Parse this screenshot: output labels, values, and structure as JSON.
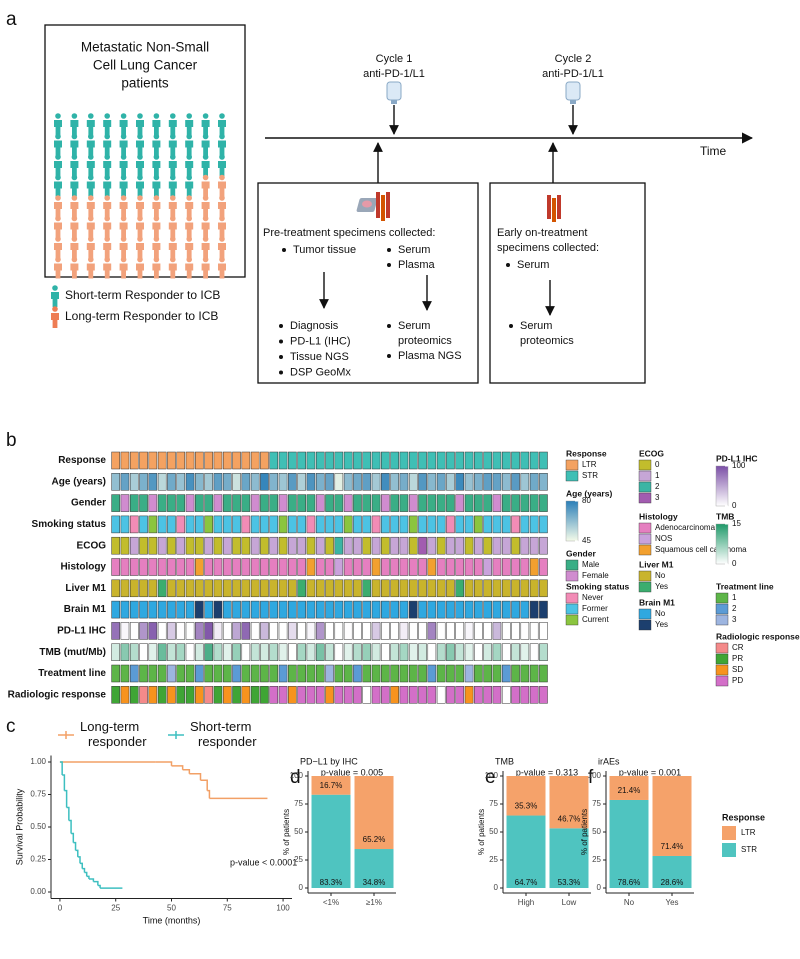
{
  "panel_a": {
    "label": "a",
    "cohort_title": [
      "Metastatic Non-Small",
      "Cell Lung Cancer",
      "patients"
    ],
    "legend": [
      "Short-term Responder to ICB",
      "Long-term Responder to ICB"
    ],
    "cycles": [
      {
        "name": "Cycle 1",
        "drug": "anti-PD-1/L1"
      },
      {
        "name": "Cycle 2",
        "drug": "anti-PD-1/L1"
      }
    ],
    "time_label": "Time",
    "pretreatment": {
      "title": "Pre-treatment specimens collected:",
      "tissue": "Tumor tissue",
      "blood": [
        "Serum",
        "Plasma"
      ],
      "tissue_assays": [
        "Diagnosis",
        "PD-L1 (IHC)",
        "Tissue NGS",
        "DSP GeoMx"
      ],
      "blood_assays": [
        [
          "Serum",
          "proteomics"
        ],
        [
          "Plasma NGS"
        ]
      ]
    },
    "on_treatment": {
      "title": [
        "Early on-treatment",
        "specimens collected:"
      ],
      "sample": "Serum",
      "assay": [
        "Serum",
        "proteomics"
      ]
    }
  },
  "panel_b": {
    "label": "b",
    "rows": [
      {
        "label": "Response",
        "items": [
          {
            "label": "LTR",
            "color": "#f4a261"
          },
          {
            "label": "STR",
            "color": "#3fbfb5"
          }
        ],
        "values": [
          0,
          0,
          0,
          0,
          0,
          0,
          0,
          0,
          0,
          0,
          0,
          0,
          0,
          0,
          0,
          0,
          0,
          1,
          1,
          1,
          1,
          1,
          1,
          1,
          1,
          1,
          1,
          1,
          1,
          1,
          1,
          1,
          1,
          1,
          1,
          1,
          1,
          1,
          1,
          1,
          1,
          1,
          1,
          1,
          1,
          1,
          1
        ]
      },
      {
        "label": "Age (years)",
        "scale": {
          "colors": [
            "#f4fbe9",
            "#2b7fb8"
          ],
          "min": 45,
          "max": 80,
          "ticks": [
            80,
            45
          ]
        },
        "values": [
          62,
          70,
          58,
          66,
          73,
          55,
          68,
          61,
          75,
          64,
          59,
          71,
          67,
          52,
          69,
          63,
          78,
          65,
          60,
          72,
          57,
          74,
          66,
          70,
          48,
          63,
          68,
          71,
          59,
          76,
          62,
          67,
          55,
          73,
          64,
          69,
          58,
          77,
          61,
          66,
          71,
          70,
          63,
          72,
          60,
          68,
          65
        ]
      },
      {
        "label": "Gender",
        "items": [
          {
            "label": "Male",
            "color": "#3aae86"
          },
          {
            "label": "Female",
            "color": "#d08ccf"
          }
        ],
        "values": [
          0,
          1,
          0,
          0,
          1,
          0,
          0,
          0,
          1,
          0,
          0,
          1,
          0,
          0,
          0,
          1,
          0,
          0,
          1,
          0,
          0,
          0,
          1,
          0,
          0,
          1,
          0,
          0,
          0,
          1,
          0,
          0,
          1,
          0,
          0,
          0,
          0,
          1,
          0,
          0,
          0,
          1,
          0,
          0,
          0,
          0,
          0
        ]
      },
      {
        "label": "Smoking status",
        "items": [
          {
            "label": "Never",
            "color": "#f28cb6"
          },
          {
            "label": "Former",
            "color": "#4cc3e4"
          },
          {
            "label": "Current",
            "color": "#8bc53f"
          }
        ],
        "values": [
          1,
          1,
          0,
          1,
          2,
          1,
          1,
          0,
          1,
          1,
          2,
          1,
          1,
          1,
          0,
          1,
          1,
          1,
          2,
          1,
          1,
          0,
          1,
          1,
          1,
          2,
          1,
          1,
          0,
          1,
          1,
          1,
          2,
          1,
          1,
          1,
          0,
          1,
          1,
          2,
          1,
          1,
          1,
          0,
          1,
          1,
          1
        ]
      },
      {
        "label": "ECOG",
        "items": [
          {
            "label": "0",
            "color": "#c2bd2c"
          },
          {
            "label": "1",
            "color": "#c6a6d6"
          },
          {
            "label": "2",
            "color": "#3bb5a4"
          },
          {
            "label": "3",
            "color": "#a25cb0"
          }
        ],
        "values": [
          0,
          0,
          1,
          0,
          0,
          1,
          0,
          1,
          0,
          0,
          1,
          0,
          1,
          0,
          0,
          1,
          0,
          1,
          0,
          1,
          1,
          0,
          1,
          0,
          2,
          1,
          1,
          0,
          1,
          0,
          1,
          1,
          0,
          3,
          1,
          0,
          1,
          1,
          0,
          1,
          0,
          1,
          1,
          0,
          1,
          1,
          1
        ]
      },
      {
        "label": "Histology",
        "items": [
          {
            "label": "Adenocarcinoma",
            "color": "#e57fc0"
          },
          {
            "label": "NOS",
            "color": "#c9a2dc"
          },
          {
            "label": "Squamous cell carcinoma",
            "color": "#f2a02f"
          }
        ],
        "values": [
          0,
          0,
          0,
          0,
          0,
          0,
          0,
          0,
          0,
          2,
          0,
          0,
          0,
          0,
          0,
          0,
          0,
          0,
          0,
          0,
          0,
          2,
          0,
          0,
          1,
          0,
          0,
          0,
          2,
          0,
          0,
          0,
          0,
          0,
          2,
          0,
          0,
          0,
          0,
          0,
          1,
          0,
          0,
          0,
          0,
          2,
          0
        ]
      },
      {
        "label": "Liver M1",
        "items": [
          {
            "label": "No",
            "color": "#c9b42c"
          },
          {
            "label": "Yes",
            "color": "#3bad6f"
          }
        ],
        "values": [
          0,
          0,
          0,
          0,
          0,
          1,
          0,
          0,
          0,
          0,
          0,
          0,
          0,
          0,
          0,
          0,
          0,
          0,
          0,
          0,
          1,
          0,
          0,
          0,
          0,
          0,
          0,
          1,
          0,
          0,
          0,
          0,
          0,
          0,
          0,
          0,
          0,
          1,
          0,
          0,
          0,
          0,
          0,
          0,
          0,
          0,
          0
        ]
      },
      {
        "label": "Brain M1",
        "items": [
          {
            "label": "No",
            "color": "#2fa8e0"
          },
          {
            "label": "Yes",
            "color": "#1c3f6e"
          }
        ],
        "values": [
          0,
          0,
          0,
          0,
          0,
          0,
          0,
          0,
          0,
          1,
          0,
          1,
          0,
          0,
          0,
          0,
          0,
          0,
          0,
          0,
          0,
          0,
          0,
          0,
          0,
          0,
          0,
          0,
          0,
          0,
          0,
          0,
          1,
          0,
          0,
          0,
          0,
          0,
          0,
          0,
          0,
          0,
          0,
          0,
          0,
          1,
          1
        ]
      },
      {
        "label": "PD-L1 IHC",
        "scale": {
          "colors": [
            "#ffffff",
            "#7b4fa6"
          ],
          "min": 0,
          "max": 100,
          "ticks": [
            100,
            0
          ]
        },
        "values": [
          80,
          5,
          0,
          60,
          90,
          0,
          30,
          1,
          0,
          70,
          95,
          10,
          0,
          50,
          85,
          0,
          40,
          0,
          0,
          20,
          null,
          5,
          60,
          0,
          0,
          1,
          0,
          null,
          30,
          0,
          0,
          10,
          0,
          0,
          70,
          0,
          0,
          null,
          5,
          0,
          0,
          40,
          0,
          0,
          1,
          null,
          0
        ]
      },
      {
        "label": "TMB (mut/Mb)",
        "legend_title": "TMB",
        "scale": {
          "colors": [
            "#ffffff",
            "#1f9a6a"
          ],
          "min": 0,
          "max": 15,
          "ticks": [
            15,
            0
          ]
        },
        "values": [
          3,
          8,
          5,
          null,
          2,
          10,
          4,
          6,
          null,
          3,
          12,
          5,
          2,
          7,
          null,
          4,
          3,
          5,
          2,
          null,
          6,
          3,
          9,
          4,
          null,
          2,
          5,
          7,
          3,
          null,
          4,
          6,
          2,
          3,
          null,
          5,
          8,
          4,
          2,
          null,
          3,
          6,
          null,
          4,
          2,
          null,
          5
        ]
      },
      {
        "label": "Treatment line",
        "items": [
          {
            "label": "1",
            "color": "#5db548"
          },
          {
            "label": "2",
            "color": "#5b9bd5"
          },
          {
            "label": "3",
            "color": "#9db5e0"
          }
        ],
        "values": [
          0,
          0,
          1,
          0,
          0,
          0,
          2,
          0,
          0,
          1,
          0,
          0,
          0,
          1,
          0,
          0,
          0,
          0,
          1,
          0,
          0,
          0,
          0,
          2,
          0,
          0,
          1,
          0,
          0,
          0,
          0,
          0,
          0,
          0,
          1,
          0,
          0,
          0,
          2,
          0,
          0,
          0,
          1,
          0,
          0,
          0,
          0
        ]
      },
      {
        "label": "Radiologic response",
        "items": [
          {
            "label": "CR",
            "color": "#f48a8a"
          },
          {
            "label": "PR",
            "color": "#3fa535"
          },
          {
            "label": "SD",
            "color": "#f7931e"
          },
          {
            "label": "PD",
            "color": "#d36fc8"
          }
        ],
        "values": [
          1,
          2,
          1,
          0,
          2,
          1,
          2,
          1,
          1,
          2,
          0,
          1,
          2,
          1,
          2,
          1,
          1,
          3,
          3,
          2,
          3,
          3,
          3,
          2,
          3,
          3,
          3,
          null,
          3,
          3,
          2,
          3,
          3,
          3,
          3,
          null,
          3,
          3,
          2,
          3,
          3,
          3,
          null,
          3,
          3,
          3,
          3
        ]
      }
    ]
  },
  "chart_data": [
    {
      "type": "line",
      "label": "c",
      "xlabel": "Time (months)",
      "ylabel": "Survival Probability",
      "annotation": "p-value < 0.0001",
      "xlim": [
        -4,
        104
      ],
      "xticks": [
        0,
        25,
        50,
        75,
        100
      ],
      "ylim": [
        -0.05,
        1.05
      ],
      "yticks": [
        {
          "value": 0,
          "label": "0.00"
        },
        {
          "value": 0.25,
          "label": "0.25"
        },
        {
          "value": 0.5,
          "label": "0.50"
        },
        {
          "value": 0.75,
          "label": "0.75"
        },
        {
          "value": 1,
          "label": "1.00"
        }
      ],
      "series": [
        {
          "name": "Long-term responder",
          "color": "#f2a066",
          "x": [
            0,
            43,
            50,
            55,
            58,
            63,
            66,
            67,
            93
          ],
          "values": [
            1,
            1,
            0.97,
            0.94,
            0.91,
            0.86,
            0.78,
            0.72,
            0.72
          ]
        },
        {
          "name": "Short-term responder",
          "color": "#3dbfc0",
          "x": [
            0,
            1,
            2,
            3,
            4,
            5,
            6,
            7,
            8,
            9,
            10,
            11,
            12,
            13,
            15,
            17,
            18,
            28
          ],
          "values": [
            1,
            0.9,
            0.78,
            0.65,
            0.55,
            0.45,
            0.38,
            0.32,
            0.27,
            0.22,
            0.18,
            0.15,
            0.12,
            0.1,
            0.08,
            0.05,
            0.03,
            0.03
          ]
        }
      ]
    },
    {
      "type": "bar",
      "stacked": true,
      "label": "d",
      "title": "PD−L1 by IHC",
      "subtitle": "p-value = 0.005",
      "ylabel": "% of patients",
      "categories": [
        "<1%",
        "≥1%"
      ],
      "ylim": [
        0,
        100
      ],
      "yticks": [
        0,
        25,
        50,
        75,
        100
      ],
      "legend": false,
      "series": [
        {
          "name": "STR",
          "color": "#4fc4c0",
          "values": [
            83.3,
            34.8
          ],
          "value_labels": [
            "83.3%",
            "34.8%"
          ]
        },
        {
          "name": "LTR",
          "color": "#f5a26a",
          "values": [
            16.7,
            65.2
          ],
          "value_labels": [
            "16.7%",
            "65.2%"
          ]
        }
      ]
    },
    {
      "type": "bar",
      "stacked": true,
      "label": "e",
      "title": "TMB",
      "subtitle": "p-value = 0.313",
      "ylabel": "% of patients",
      "categories": [
        "High",
        "Low"
      ],
      "ylim": [
        0,
        100
      ],
      "yticks": [
        0,
        25,
        50,
        75,
        100
      ],
      "legend": false,
      "series": [
        {
          "name": "STR",
          "color": "#4fc4c0",
          "values": [
            64.7,
            53.3
          ],
          "value_labels": [
            "64.7%",
            "53.3%"
          ]
        },
        {
          "name": "LTR",
          "color": "#f5a26a",
          "values": [
            35.3,
            46.7
          ],
          "value_labels": [
            "35.3%",
            "46.7%"
          ]
        }
      ]
    },
    {
      "type": "bar",
      "stacked": true,
      "label": "f",
      "title": "irAEs",
      "subtitle": "p-value = 0.001",
      "ylabel": "% of patients",
      "categories": [
        "No",
        "Yes"
      ],
      "ylim": [
        0,
        100
      ],
      "yticks": [
        0,
        25,
        50,
        75,
        100
      ],
      "legend": true,
      "legend_title": "Response",
      "series": [
        {
          "name": "STR",
          "color": "#4fc4c0",
          "values": [
            78.6,
            28.6
          ],
          "value_labels": [
            "78.6%",
            "28.6%"
          ]
        },
        {
          "name": "LTR",
          "color": "#f5a26a",
          "values": [
            21.4,
            71.4
          ],
          "value_labels": [
            "21.4%",
            "71.4%"
          ]
        }
      ]
    }
  ]
}
